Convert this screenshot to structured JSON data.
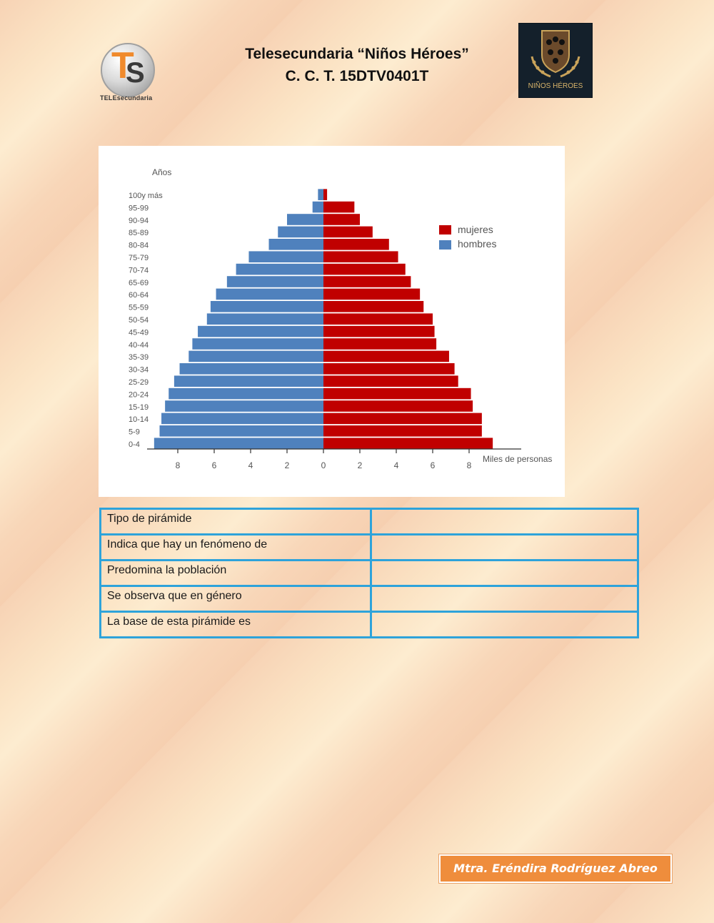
{
  "header": {
    "line1": "Telesecundaria  “Niños Héroes”",
    "line2": "C. C. T. 15DTV0401T"
  },
  "logos": {
    "left": {
      "icon": "telesecundaria-logo",
      "letters": [
        "T",
        "S"
      ],
      "caption": "TELEsecundaria"
    },
    "right": {
      "icon": "ninos-heroes-shield-logo",
      "caption": "NIÑOS HÉROES"
    }
  },
  "chart_data": {
    "type": "bar",
    "subtype": "population-pyramid",
    "ylabel": "Años",
    "xlabel": "Miles de personas",
    "categories": [
      "0-4",
      "5-9",
      "10-14",
      "15-19",
      "20-24",
      "25-29",
      "30-34",
      "35-39",
      "40-44",
      "45-49",
      "50-54",
      "55-59",
      "60-64",
      "65-69",
      "70-74",
      "75-79",
      "80-84",
      "85-89",
      "90-94",
      "95-99",
      "100y más"
    ],
    "series": [
      {
        "name": "hombres",
        "color": "#4f81bd",
        "values": [
          9.3,
          9.0,
          8.9,
          8.7,
          8.5,
          8.2,
          7.9,
          7.4,
          7.2,
          6.9,
          6.4,
          6.2,
          5.9,
          5.3,
          4.8,
          4.1,
          3.0,
          2.5,
          2.0,
          0.6,
          0.3
        ]
      },
      {
        "name": "mujeres",
        "color": "#c00000",
        "values": [
          9.3,
          8.7,
          8.7,
          8.2,
          8.1,
          7.4,
          7.2,
          6.9,
          6.2,
          6.1,
          6.0,
          5.5,
          5.3,
          4.8,
          4.5,
          4.1,
          3.6,
          2.7,
          2.0,
          1.7,
          0.2
        ]
      }
    ],
    "xticks": [
      "8",
      "6",
      "4",
      "2",
      "0",
      "2",
      "4",
      "6",
      "8"
    ],
    "xlim": [
      -10,
      10
    ],
    "grid": false,
    "legend_position": "top-right"
  },
  "table": {
    "rows": [
      {
        "label": "Tipo de pirámide",
        "answer": ""
      },
      {
        "label": "Indica que hay un fenómeno de",
        "answer": ""
      },
      {
        "label": "Predomina la población",
        "answer": ""
      },
      {
        "label": "Se observa que en género",
        "answer": ""
      },
      {
        "label": "La base de esta pirámide es",
        "answer": ""
      }
    ]
  },
  "signature": "Mtra. Eréndira Rodríguez  Abreo"
}
